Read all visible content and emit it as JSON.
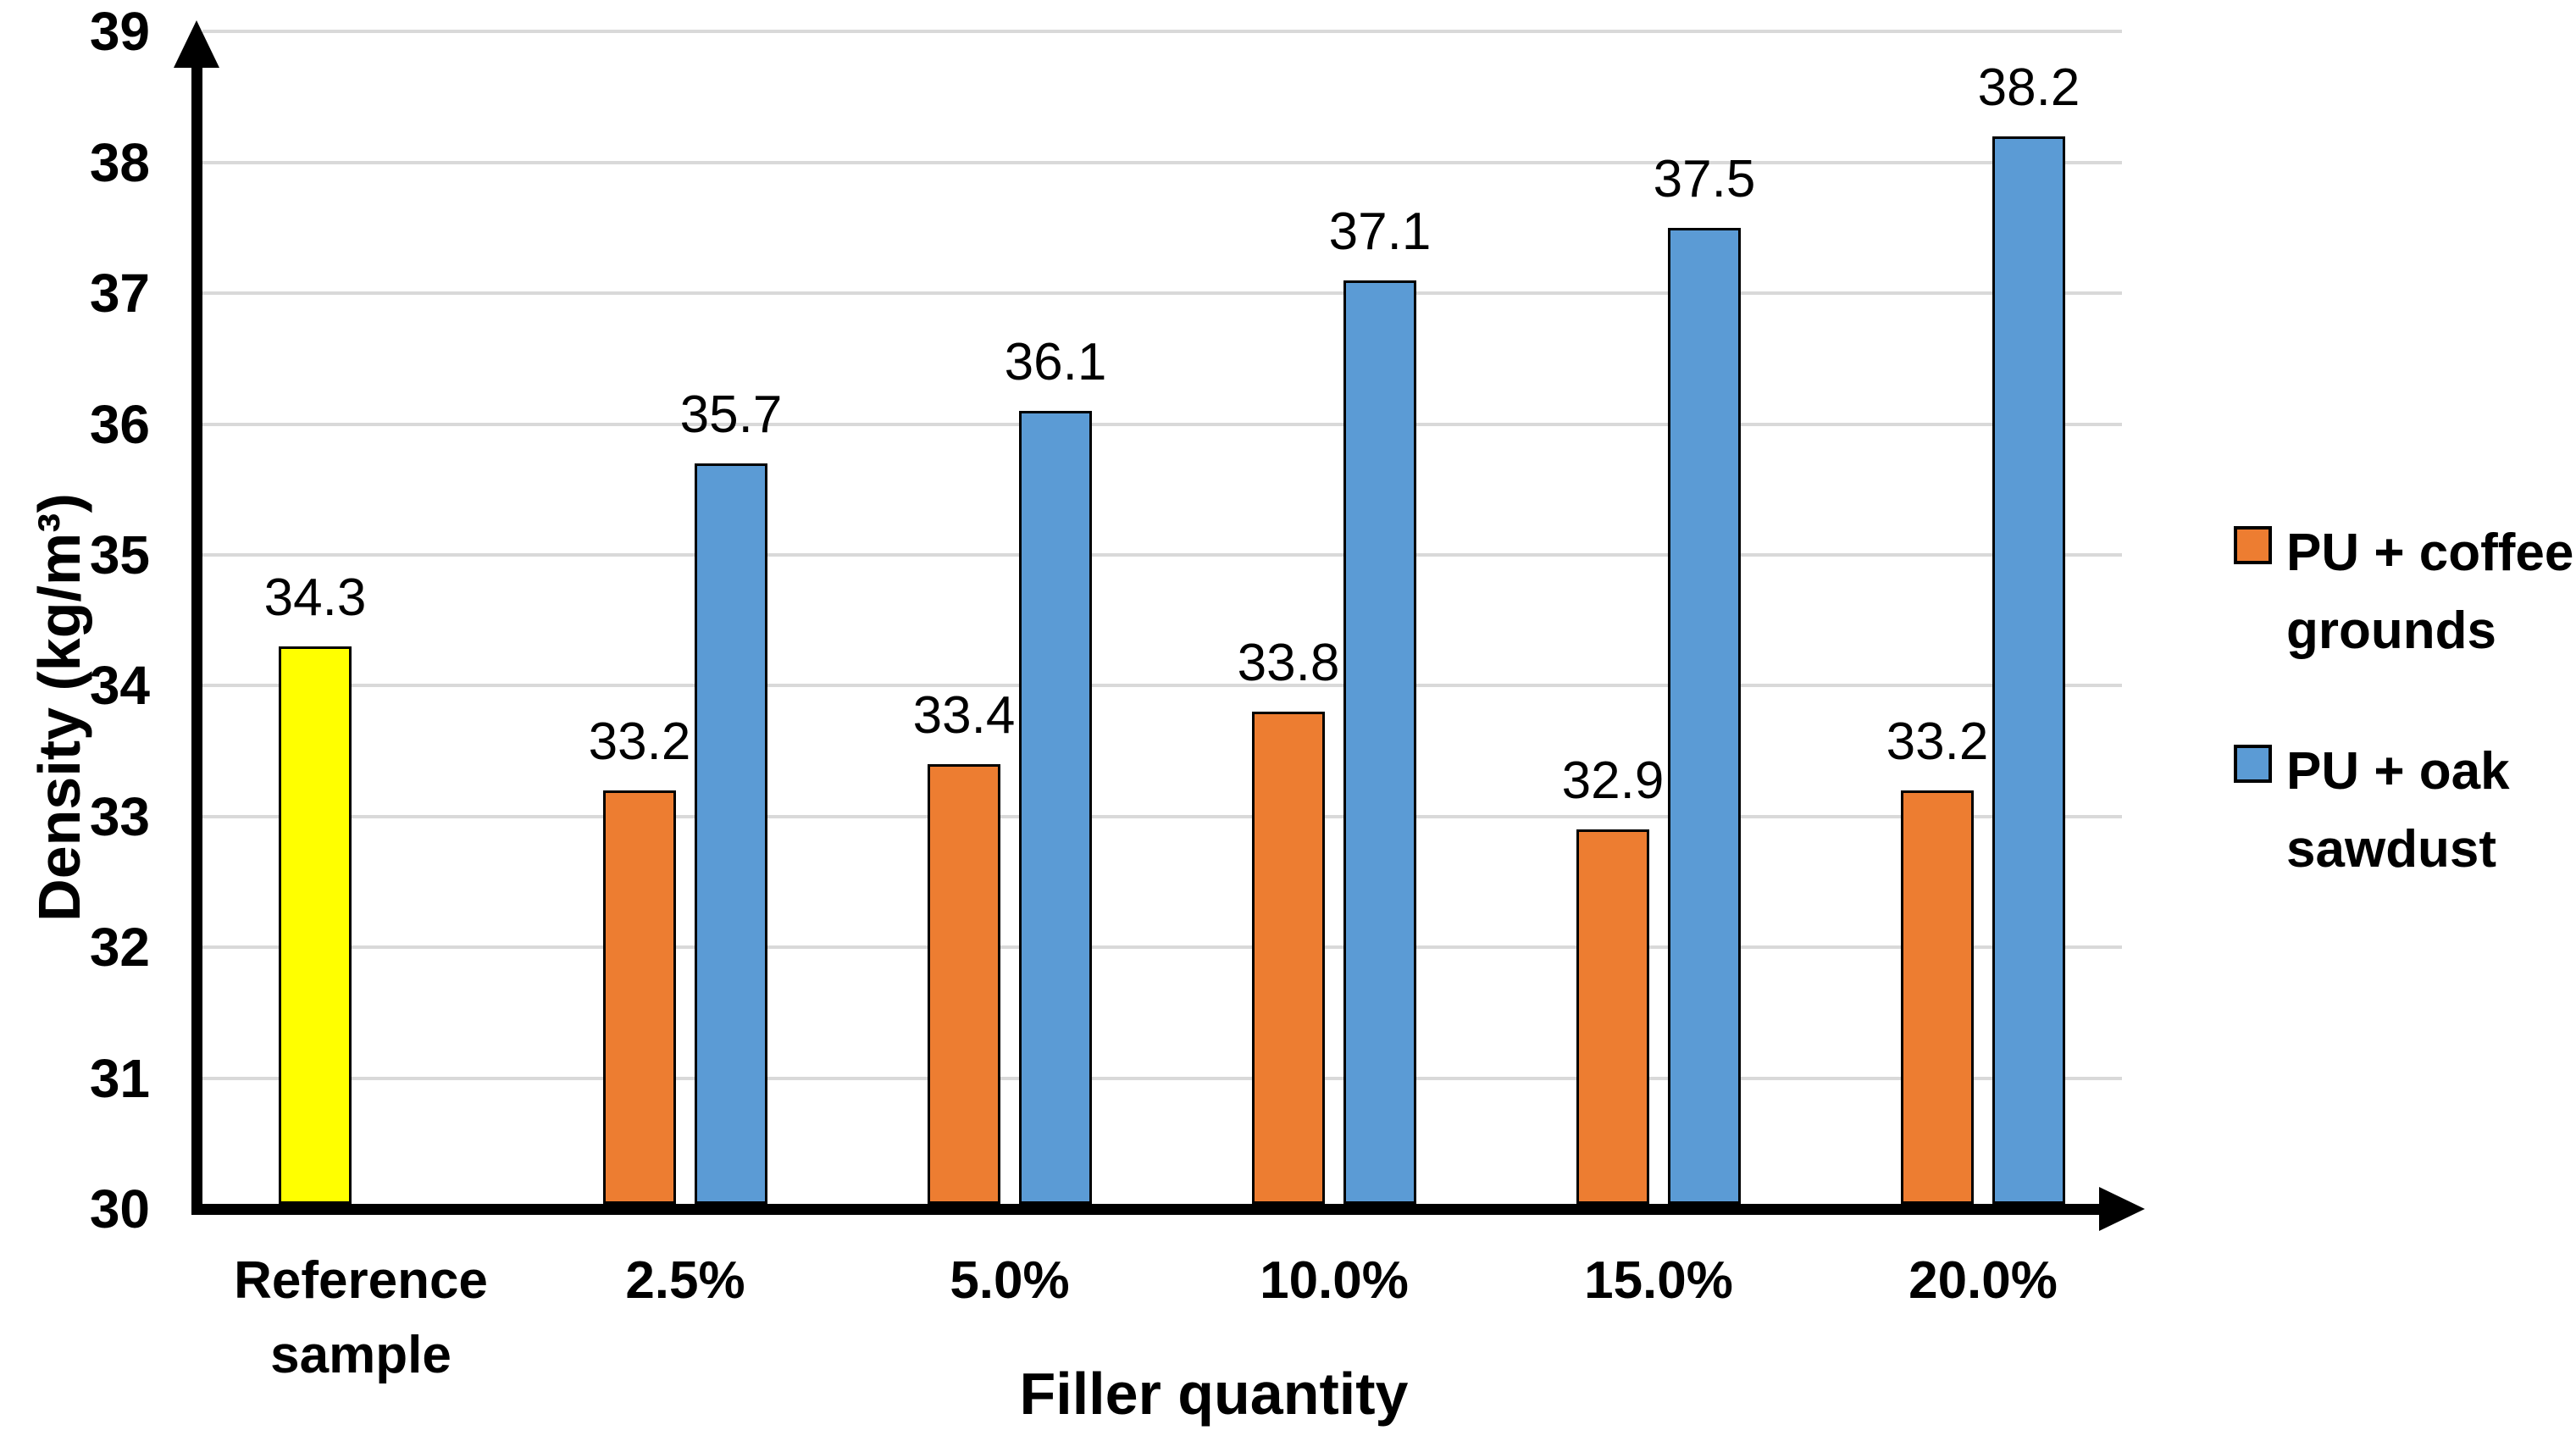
{
  "chart_data": {
    "type": "bar",
    "title": "",
    "xlabel": "Filler quantity",
    "ylabel": "Density (kg/m³)",
    "ylim": [
      30,
      39
    ],
    "yticks": [
      30,
      31,
      32,
      33,
      34,
      35,
      36,
      37,
      38,
      39
    ],
    "grid": true,
    "grid_color": "#d9d9d9",
    "axis_color": "#000000",
    "legend_position": "right",
    "categories": [
      "Reference sample",
      "2.5%",
      "5.0%",
      "10.0%",
      "15.0%",
      "20.0%"
    ],
    "series": [
      {
        "name": "PU + coffee grounds",
        "color": "#ED7D31",
        "values": [
          null,
          33.2,
          33.4,
          33.8,
          32.9,
          33.2
        ]
      },
      {
        "name": "PU + oak sawdust",
        "color": "#5B9BD5",
        "values": [
          null,
          35.7,
          36.1,
          37.1,
          37.5,
          38.2
        ]
      }
    ],
    "reference_bar": {
      "category": "Reference sample",
      "value": 34.3,
      "color": "#FFFF00"
    },
    "data_labels": {
      "reference": "34.3",
      "coffee": [
        "33.2",
        "33.4",
        "33.8",
        "32.9",
        "33.2"
      ],
      "oak": [
        "35.7",
        "36.1",
        "37.1",
        "37.5",
        "38.2"
      ]
    }
  },
  "legend": {
    "items": [
      {
        "label": "PU + coffee grounds",
        "color": "#ED7D31"
      },
      {
        "label": "PU + oak sawdust",
        "color": "#5B9BD5"
      }
    ]
  },
  "axes": {
    "x_title": "Filler quantity",
    "y_title": "Density (kg/m³)"
  }
}
